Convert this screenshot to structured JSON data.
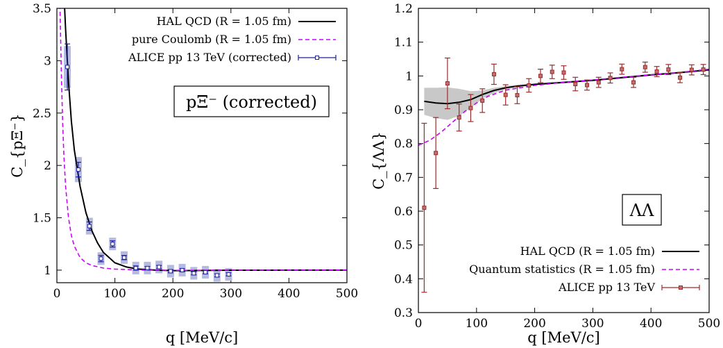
{
  "chart_data": [
    {
      "type": "line",
      "panel": "left",
      "xlabel": "q [MeV/c]",
      "ylabel": "C_{pΞ⁻}",
      "xlim": [
        0,
        500
      ],
      "ylim": [
        0.88,
        3.5
      ],
      "xticks": [
        0,
        100,
        200,
        300,
        400,
        500
      ],
      "yticks": [
        1,
        1.5,
        2,
        2.5,
        3,
        3.5
      ],
      "xtick_labels": [
        "0",
        "100",
        "200",
        "300",
        "400",
        "500"
      ],
      "ytick_labels": [
        "1",
        "1.5",
        "2",
        "2.5",
        "3",
        "3.5"
      ],
      "annotation": "pΞ⁻ (corrected)",
      "legend_position": "top-right",
      "series": [
        {
          "name": "HAL QCD (R = 1.05 fm)",
          "style": "solid",
          "color": "#000000",
          "x": [
            10,
            15,
            20,
            25,
            30,
            40,
            50,
            60,
            70,
            80,
            100,
            120,
            140,
            170,
            200,
            250,
            300,
            400,
            500
          ],
          "y": [
            3.9,
            3.3,
            2.8,
            2.42,
            2.15,
            1.8,
            1.55,
            1.38,
            1.26,
            1.17,
            1.07,
            1.03,
            1.01,
            1.0,
            0.995,
            0.997,
            0.999,
            1.0,
            1.0
          ]
        },
        {
          "name": "pure Coulomb (R = 1.05 fm)",
          "style": "dashed",
          "color": "#cc00ff",
          "x": [
            5,
            8,
            10,
            12,
            15,
            20,
            25,
            30,
            40,
            50,
            60,
            80,
            100,
            150,
            200,
            300,
            500
          ],
          "y": [
            3.6,
            2.8,
            2.4,
            2.1,
            1.8,
            1.5,
            1.33,
            1.23,
            1.12,
            1.07,
            1.045,
            1.02,
            1.01,
            1.0,
            0.998,
            0.999,
            1.0
          ]
        },
        {
          "name": "ALICE pp 13 TeV (corrected)",
          "style": "points",
          "color": "#1c1c9c",
          "band_color": "#b5bbe0",
          "x": [
            18,
            37,
            56,
            76,
            96,
            116,
            136,
            156,
            176,
            196,
            216,
            236,
            256,
            276,
            296
          ],
          "y": [
            2.94,
            1.96,
            1.42,
            1.11,
            1.25,
            1.12,
            1.02,
            1.02,
            1.03,
            0.99,
            1.0,
            0.97,
            0.98,
            0.95,
            0.96
          ],
          "err": [
            0.22,
            0.07,
            0.04,
            0.03,
            0.03,
            0.02,
            0.02,
            0.015,
            0.015,
            0.015,
            0.015,
            0.015,
            0.015,
            0.015,
            0.015
          ],
          "sys": [
            0.2,
            0.12,
            0.08,
            0.06,
            0.06,
            0.06,
            0.06,
            0.06,
            0.06,
            0.06,
            0.06,
            0.06,
            0.06,
            0.06,
            0.06
          ]
        }
      ]
    },
    {
      "type": "line",
      "panel": "right",
      "xlabel": "q [MeV/c]",
      "ylabel": "C_{ΛΛ}",
      "xlim": [
        0,
        500
      ],
      "ylim": [
        0.3,
        1.2
      ],
      "xticks": [
        0,
        100,
        200,
        300,
        400,
        500
      ],
      "yticks": [
        0.3,
        0.4,
        0.5,
        0.6,
        0.7,
        0.8,
        0.9,
        1.0,
        1.1,
        1.2
      ],
      "xtick_labels": [
        "0",
        "100",
        "200",
        "300",
        "400",
        "500"
      ],
      "ytick_labels": [
        "0.3",
        "0.4",
        "0.5",
        "0.6",
        "0.7",
        "0.8",
        "0.9",
        "1",
        "1.1",
        "1.2"
      ],
      "annotation": "ΛΛ",
      "legend_position": "bottom-right",
      "series": [
        {
          "name": "HAL QCD (R = 1.05 fm)",
          "style": "solid",
          "color": "#000000",
          "band_color": "#c8c8c8",
          "x": [
            10,
            30,
            50,
            70,
            90,
            110,
            130,
            150,
            170,
            200,
            250,
            300,
            350,
            400,
            450,
            500
          ],
          "y": [
            0.925,
            0.92,
            0.918,
            0.922,
            0.93,
            0.945,
            0.957,
            0.965,
            0.97,
            0.975,
            0.981,
            0.987,
            0.995,
            1.003,
            1.01,
            1.018
          ],
          "band": [
            0.04,
            0.045,
            0.048,
            0.04,
            0.025,
            0.012,
            0.008,
            0.005,
            0.004,
            0.003,
            0.003,
            0.003,
            0.003,
            0.003,
            0.003,
            0.003
          ]
        },
        {
          "name": "Quantum statistics (R = 1.05 fm)",
          "style": "dashed",
          "color": "#cc00ff",
          "x": [
            0,
            20,
            40,
            60,
            80,
            100,
            120,
            150,
            200,
            250,
            300,
            350,
            400,
            450,
            500
          ],
          "y": [
            0.795,
            0.81,
            0.835,
            0.865,
            0.895,
            0.92,
            0.94,
            0.958,
            0.972,
            0.981,
            0.988,
            0.996,
            1.003,
            1.01,
            1.02
          ]
        },
        {
          "name": "ALICE pp 13 TeV",
          "style": "points",
          "color": "#9a2a2a",
          "fill": "#c07070",
          "x": [
            10,
            30,
            50,
            70,
            90,
            110,
            130,
            150,
            170,
            190,
            210,
            230,
            250,
            270,
            290,
            310,
            330,
            350,
            370,
            390,
            410,
            430,
            450,
            470,
            490
          ],
          "y": [
            0.61,
            0.772,
            0.978,
            0.877,
            0.905,
            0.927,
            1.005,
            0.944,
            0.943,
            0.972,
            1.0,
            1.012,
            1.01,
            0.976,
            0.973,
            0.981,
            0.994,
            1.02,
            0.981,
            1.026,
            1.013,
            1.019,
            0.995,
            1.018,
            1.019
          ],
          "err": [
            0.25,
            0.105,
            0.075,
            0.04,
            0.04,
            0.035,
            0.03,
            0.03,
            0.025,
            0.02,
            0.02,
            0.02,
            0.02,
            0.02,
            0.015,
            0.015,
            0.015,
            0.015,
            0.015,
            0.015,
            0.015,
            0.015,
            0.015,
            0.015,
            0.015
          ]
        }
      ]
    }
  ]
}
